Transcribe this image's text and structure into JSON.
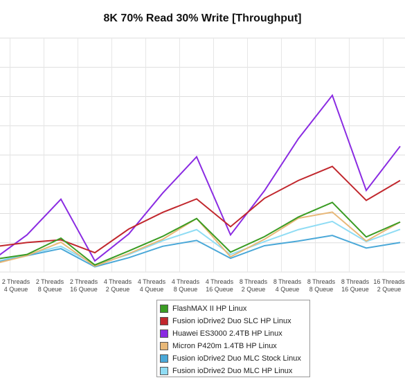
{
  "chart_data": {
    "type": "line",
    "title": "8K 70% Read 30% Write [Throughput]",
    "xlabel": "",
    "ylabel": "",
    "grid": true,
    "legend_position": "bottom",
    "categories": [
      [
        "2 Threads",
        "4 Queue"
      ],
      [
        "2 Threads",
        "8 Queue"
      ],
      [
        "2 Threads",
        "16 Queue"
      ],
      [
        "4 Threads",
        "2 Queue"
      ],
      [
        "4 Threads",
        "4 Queue"
      ],
      [
        "4 Threads",
        "8 Queue"
      ],
      [
        "4 Threads",
        "16 Queue"
      ],
      [
        "8 Threads",
        "2 Queue"
      ],
      [
        "8 Threads",
        "4 Queue"
      ],
      [
        "8 Threads",
        "8 Queue"
      ],
      [
        "8 Threads",
        "16 Queue"
      ],
      [
        "16 Threads",
        "2 Queue"
      ],
      [
        "16",
        "4"
      ]
    ],
    "y_gridlines": 8,
    "series": [
      {
        "name": "FlashMAX II HP Linux",
        "color": "#3a9c23",
        "values": [
          0.43,
          0.6,
          1.16,
          0.24,
          0.72,
          1.22,
          1.83,
          0.68,
          1.21,
          1.88,
          2.38,
          1.2,
          1.71
        ]
      },
      {
        "name": "Fusion ioDrive2 Duo SLC HP Linux",
        "color": "#c1272d",
        "values": [
          0.86,
          1.01,
          1.1,
          0.66,
          1.47,
          2.04,
          2.5,
          1.55,
          2.52,
          3.13,
          3.61,
          2.45,
          3.13
        ]
      },
      {
        "name": "Huawei ES3000 2.4TB HP Linux",
        "color": "#8a2be2",
        "values": [
          0.42,
          1.27,
          2.49,
          0.38,
          1.3,
          2.7,
          3.94,
          1.27,
          2.78,
          4.56,
          6.04,
          2.79,
          4.3
        ]
      },
      {
        "name": "Micron P420m 1.4TB HP Linux",
        "color": "#e8b878",
        "values": [
          0.27,
          0.56,
          1.02,
          0.2,
          0.63,
          1.12,
          1.83,
          0.52,
          1.12,
          1.84,
          2.05,
          1.06,
          1.71
        ]
      },
      {
        "name": "Fusion ioDrive2 Duo MLC Stock Linux",
        "color": "#4aa8d8",
        "values": [
          0.3,
          0.56,
          0.8,
          0.18,
          0.49,
          0.88,
          1.08,
          0.47,
          0.9,
          1.06,
          1.25,
          0.82,
          1.01
        ]
      },
      {
        "name": "Fusion ioDrive2 Duo MLC HP Linux",
        "color": "#8fdcf4",
        "values": [
          0.34,
          0.6,
          0.88,
          0.25,
          0.6,
          1.07,
          1.45,
          0.6,
          1.04,
          1.45,
          1.73,
          1.04,
          1.46
        ]
      }
    ]
  }
}
